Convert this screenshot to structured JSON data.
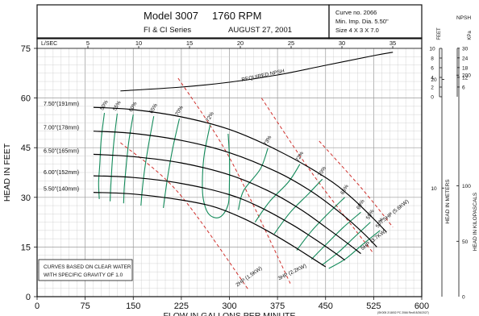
{
  "header": {
    "model": "Model 3007",
    "rpm": "1760 RPM",
    "series": "FI & CI Series",
    "date": "AUGUST 27, 2001",
    "curve_no": "Curve no. 2066",
    "min_imp": "Min. Imp. Dia. 5.50\"",
    "size": "Size 4 X 3 X 7.0"
  },
  "notes": {
    "water_line1": "CURVES BASED ON CLEAR WATER",
    "water_line2": "WITH SPECIFIC GRAVITY OF 1.0",
    "footer": "(SK005 2/18/02 PC 2066 Rev8 8/26/2027)"
  },
  "colors": {
    "frame": "#111111",
    "grid": "#c9c9c9",
    "head_curve": "#000000",
    "efficiency": "#138a5a",
    "power": "#d0312d",
    "npsh": "#000000"
  },
  "chart_data": {
    "type": "line",
    "xlabel": "FLOW IN GALLONS PER MINUTE",
    "ylabel": "HEAD IN FEET",
    "xlim": [
      0,
      600
    ],
    "ylim": [
      0,
      75
    ],
    "x_ticks": [
      0,
      75,
      150,
      225,
      300,
      375,
      450,
      525,
      600
    ],
    "y_ticks": [
      0,
      15,
      30,
      45,
      60,
      75
    ],
    "top_axis": {
      "label": "L/SEC",
      "ticks": [
        5,
        10,
        15,
        20,
        25,
        30,
        35
      ]
    },
    "npsh_axis": {
      "label": "NPSH",
      "feet_label": "FEET",
      "kpa_label": "KPa",
      "feet_ticks": [
        0,
        2,
        4,
        6,
        8,
        10
      ],
      "kpa_ticks": [
        6,
        12,
        18,
        24,
        30
      ]
    },
    "meters_axis": {
      "label": "HEAD IN METERS",
      "ticks": [
        10,
        20
      ]
    },
    "kpa_axis": {
      "label": "HEAD IN KILOPASCALS",
      "ticks": [
        50,
        100,
        200
      ]
    },
    "impellers": [
      {
        "label": "7.50\"(191mm)",
        "shutoff": 57.2,
        "points": [
          [
            88,
            57.2
          ],
          [
            150,
            56.5
          ],
          [
            225,
            54.3
          ],
          [
            300,
            50.5
          ],
          [
            375,
            44.2
          ],
          [
            450,
            36.0
          ],
          [
            490,
            30.0
          ],
          [
            525,
            23.5
          ],
          [
            545,
            19.5
          ]
        ]
      },
      {
        "label": "7.00\"(178mm)",
        "shutoff": 50.0,
        "points": [
          [
            88,
            50.0
          ],
          [
            150,
            49.3
          ],
          [
            225,
            47.2
          ],
          [
            300,
            43.5
          ],
          [
            375,
            37.6
          ],
          [
            430,
            31.5
          ],
          [
            475,
            25.0
          ],
          [
            510,
            19.0
          ],
          [
            530,
            15.0
          ]
        ]
      },
      {
        "label": "6.50\"(165mm)",
        "shutoff": 43.0,
        "points": [
          [
            88,
            43.0
          ],
          [
            150,
            42.3
          ],
          [
            225,
            40.4
          ],
          [
            300,
            36.8
          ],
          [
            360,
            32.0
          ],
          [
            410,
            26.5
          ],
          [
            450,
            21.0
          ],
          [
            485,
            16.0
          ],
          [
            505,
            13.0
          ]
        ]
      },
      {
        "label": "6.00\"(152mm)",
        "shutoff": 36.5,
        "points": [
          [
            88,
            36.5
          ],
          [
            150,
            36.0
          ],
          [
            225,
            34.2
          ],
          [
            300,
            30.8
          ],
          [
            350,
            26.8
          ],
          [
            400,
            21.5
          ],
          [
            440,
            16.5
          ],
          [
            470,
            12.5
          ],
          [
            480,
            11.0
          ]
        ]
      },
      {
        "label": "5.50\"(140mm)",
        "shutoff": 31.5,
        "points": [
          [
            88,
            31.5
          ],
          [
            150,
            31.0
          ],
          [
            225,
            29.2
          ],
          [
            275,
            27.2
          ],
          [
            320,
            23.8
          ],
          [
            360,
            19.8
          ],
          [
            400,
            15.2
          ],
          [
            430,
            11.5
          ],
          [
            450,
            9.0
          ]
        ]
      }
    ],
    "efficiency_contours": [
      {
        "label": "50%",
        "points": [
          [
            105,
            55.5
          ],
          [
            100,
            47.5
          ],
          [
            98,
            40.5
          ],
          [
            96,
            34.5
          ],
          [
            97,
            29.5
          ]
        ]
      },
      {
        "label": "55%",
        "points": [
          [
            125,
            55.3
          ],
          [
            120,
            47.2
          ],
          [
            117,
            40.0
          ],
          [
            115,
            33.5
          ],
          [
            114,
            28.8
          ]
        ]
      },
      {
        "label": "60%",
        "points": [
          [
            150,
            55.0
          ],
          [
            143,
            46.8
          ],
          [
            139,
            39.5
          ],
          [
            136,
            33.0
          ],
          [
            135,
            28.2
          ]
        ]
      },
      {
        "label": "65%",
        "points": [
          [
            182,
            54.5
          ],
          [
            174,
            46.0
          ],
          [
            168,
            38.8
          ],
          [
            164,
            32.2
          ],
          [
            162,
            27.5
          ]
        ]
      },
      {
        "label": "70%",
        "points": [
          [
            222,
            53.8
          ],
          [
            212,
            45.2
          ],
          [
            205,
            37.8
          ],
          [
            200,
            31.3
          ],
          [
            197,
            26.8
          ]
        ]
      },
      {
        "label": "72%",
        "points": [
          [
            270,
            52.0
          ],
          [
            261,
            43.3
          ],
          [
            258,
            36.3
          ],
          [
            259,
            29.8
          ],
          [
            268,
            24.9
          ],
          [
            285,
            24.0
          ],
          [
            298,
            27.8
          ],
          [
            300,
            34.5
          ],
          [
            300,
            42.2
          ],
          [
            298,
            49.2
          ]
        ]
      },
      {
        "label": "73%",
        "points": [
          [
            360,
            44.8
          ],
          [
            348,
            38.5
          ],
          [
            322,
            32.0
          ],
          [
            314,
            26.2
          ]
        ]
      },
      {
        "label": "72%",
        "points": [
          [
            410,
            40.0
          ],
          [
            392,
            34.6
          ],
          [
            363,
            28.8
          ],
          [
            340,
            22.5
          ]
        ]
      },
      {
        "label": "70%",
        "points": [
          [
            445,
            35.5
          ],
          [
            423,
            31.0
          ],
          [
            395,
            25.5
          ],
          [
            370,
            19.0
          ]
        ]
      },
      {
        "label": "65%",
        "points": [
          [
            480,
            30.0
          ],
          [
            455,
            25.3
          ],
          [
            428,
            19.8
          ],
          [
            405,
            14.0
          ]
        ]
      },
      {
        "label": "60%",
        "points": [
          [
            505,
            25.5
          ],
          [
            478,
            21.0
          ],
          [
            453,
            16.2
          ],
          [
            428,
            11.3
          ]
        ]
      },
      {
        "label": "55%",
        "points": [
          [
            520,
            22.5
          ],
          [
            495,
            18.0
          ],
          [
            470,
            13.4
          ],
          [
            444,
            9.5
          ]
        ]
      },
      {
        "label": "50%",
        "points": [
          [
            535,
            20.0
          ],
          [
            508,
            15.8
          ],
          [
            481,
            11.4
          ],
          [
            455,
            8.5
          ]
        ]
      }
    ],
    "power_lines": [
      {
        "label": "2HP (1.5KW)",
        "points": [
          [
            130,
            46.5
          ],
          [
            220,
            31.5
          ],
          [
            330,
            2.0
          ]
        ]
      },
      {
        "label": "3HP (2.2KW)",
        "points": [
          [
            220,
            66.0
          ],
          [
            300,
            42.0
          ],
          [
            395,
            4.0
          ]
        ]
      },
      {
        "label": "5HP (3.7KW)",
        "points": [
          [
            350,
            60.0
          ],
          [
            430,
            37.0
          ],
          [
            525,
            13.0
          ]
        ]
      },
      {
        "label": "7.5HP (5.6KW)",
        "points": [
          [
            440,
            47.0
          ],
          [
            505,
            33.0
          ],
          [
            555,
            21.0
          ]
        ]
      }
    ],
    "npsh_required": {
      "label": "REQUIRED NPSH",
      "points": [
        [
          130,
          1.2
        ],
        [
          225,
          2.0
        ],
        [
          300,
          3.0
        ],
        [
          375,
          4.5
        ],
        [
          450,
          6.5
        ],
        [
          525,
          8.5
        ],
        [
          555,
          9.2
        ]
      ]
    }
  }
}
